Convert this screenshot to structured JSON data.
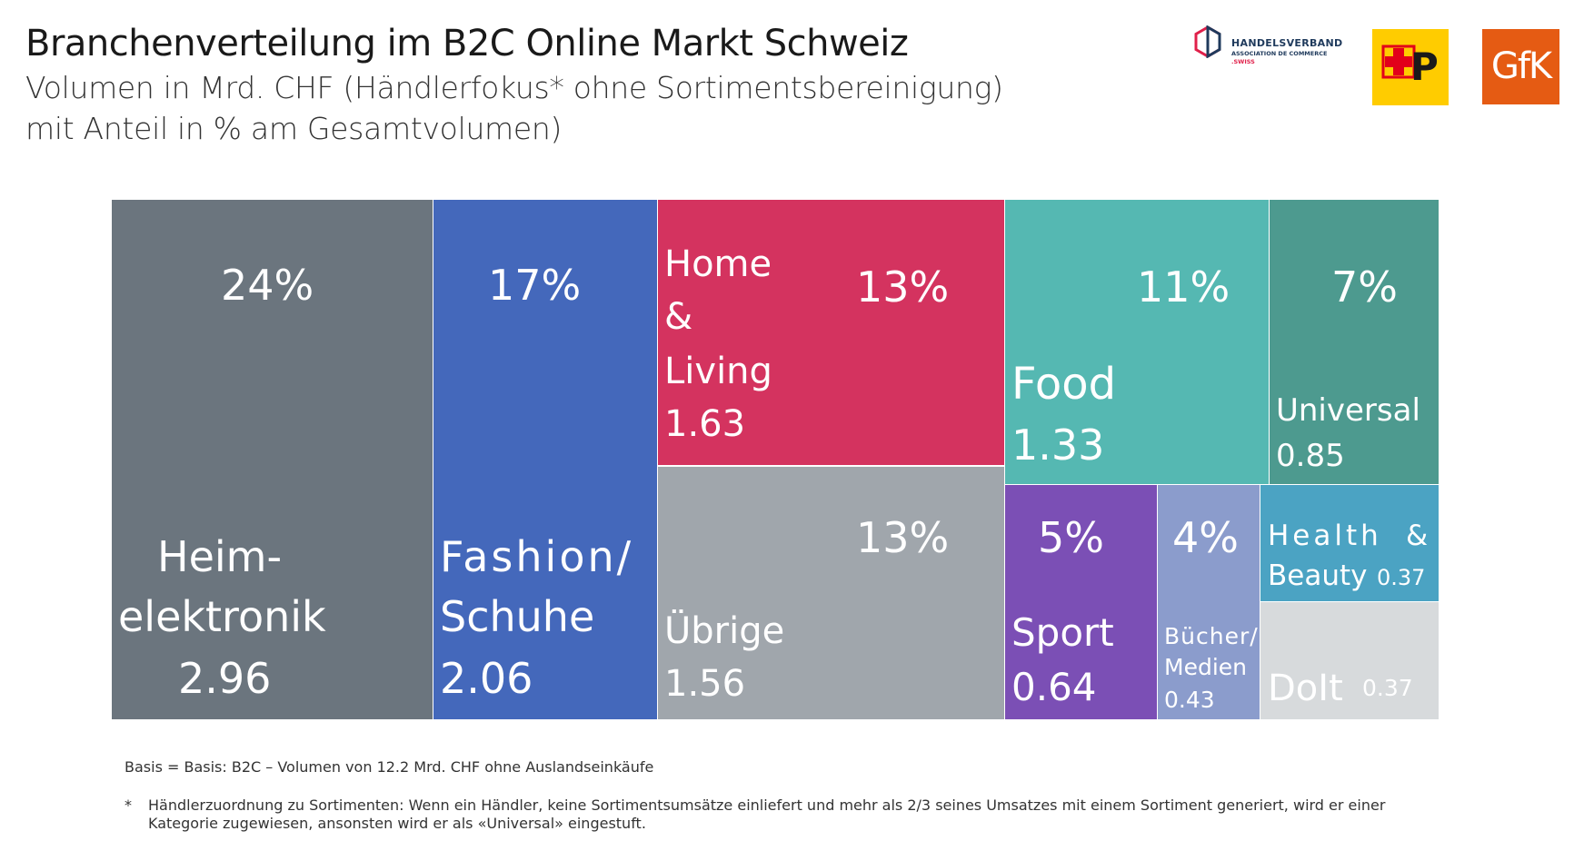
{
  "header": {
    "title": "Branchenverteilung im B2C Online Markt Schweiz",
    "subtitle_line1": "Volumen in Mrd. CHF (Händlerfokus* ohne Sortimentsbereinigung)",
    "subtitle_line2": "mit Anteil in % am Gesamtvolumen)"
  },
  "logos": {
    "handelsverband_line1": "HANDELSVERBAND",
    "handelsverband_line2": "ASSOCIATION DE COMMERCE",
    "handelsverband_line3": ".SWISS",
    "post_text": "P",
    "gfk_text": "GfK"
  },
  "colors": {
    "heimelektronik": "#6b757e",
    "fashion": "#4468bb",
    "home_living": "#d4335f",
    "uebrige": "#a0a6ac",
    "food": "#55b8b2",
    "universal": "#4d9a8f",
    "sport": "#7b4fb5",
    "buecher": "#8b9ccc",
    "health_beauty": "#4ba3c3",
    "doit": "#d7dadc",
    "post_yellow": "#ffcc00",
    "post_red": "#e2001a",
    "gfk_orange": "#e55b13"
  },
  "chart_data": {
    "type": "treemap",
    "title": "Branchenverteilung im B2C Online Markt Schweiz",
    "unit": "Mrd. CHF",
    "items": [
      {
        "name_lines": [
          "Heim-",
          "elektronik"
        ],
        "value": "2.96",
        "pct": "24%"
      },
      {
        "name_lines": [
          "Fashion/",
          "Schuhe"
        ],
        "value": "2.06",
        "pct": "17%"
      },
      {
        "name_lines": [
          "Home",
          "&",
          "Living"
        ],
        "value": "1.63",
        "pct": "13%"
      },
      {
        "name_lines": [
          "Übrige"
        ],
        "value": "1.56",
        "pct": "13%"
      },
      {
        "name_lines": [
          "Food"
        ],
        "value": "1.33",
        "pct": "11%"
      },
      {
        "name_lines": [
          "Universal"
        ],
        "value": "0.85",
        "pct": "7%"
      },
      {
        "name_lines": [
          "Sport"
        ],
        "value": "0.64",
        "pct": "5%"
      },
      {
        "name_lines": [
          "Bücher/",
          "Medien"
        ],
        "value": "0.43",
        "pct": "4%"
      },
      {
        "name_lines": [
          "Health",
          "&",
          "Beauty"
        ],
        "value": "0.37",
        "pct": ""
      },
      {
        "name_lines": [
          "DoIt"
        ],
        "value": "0.37",
        "pct": ""
      }
    ]
  },
  "footer": {
    "basis": "Basis = Basis: B2C – Volumen von 12.2 Mrd. CHF ohne Auslandseinkäufe",
    "note_marker": "*",
    "note": "Händlerzuordnung zu Sortimenten: Wenn ein Händler, keine Sortimentsumsätze einliefert und mehr als 2/3 seines Umsatzes mit einem Sortiment generiert, wird er einer Kategorie zugewiesen, ansonsten wird er als «Universal» eingestuft."
  }
}
